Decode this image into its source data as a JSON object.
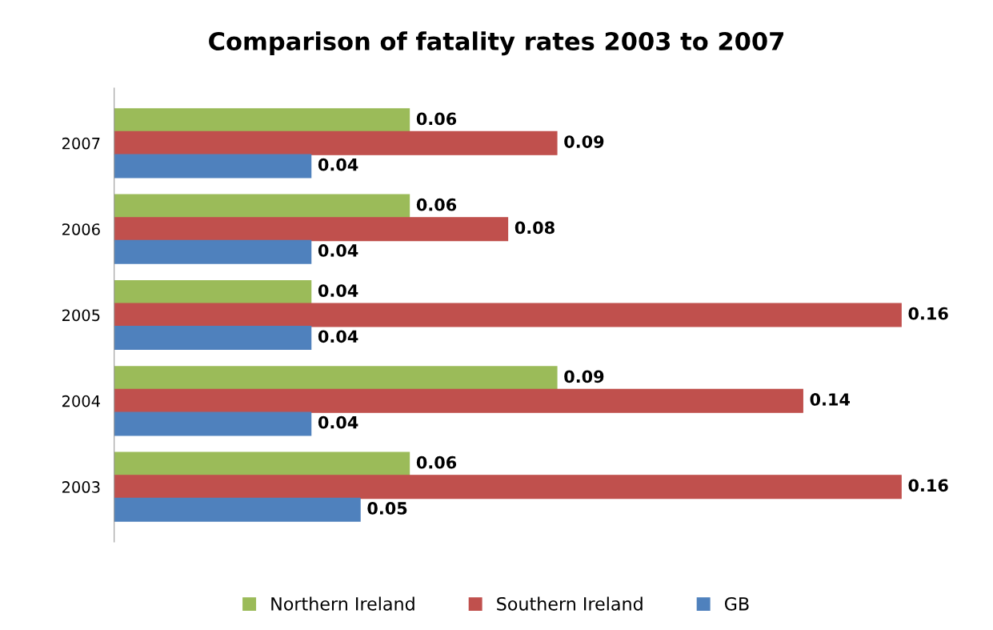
{
  "chart_data": {
    "type": "bar",
    "orientation": "horizontal",
    "title": "Comparison of fatality rates 2003 to 2007",
    "categories": [
      "2007",
      "2006",
      "2005",
      "2004",
      "2003"
    ],
    "series": [
      {
        "name": "Northern Ireland",
        "color": "#9bbb59",
        "values": [
          0.06,
          0.06,
          0.04,
          0.09,
          0.06
        ]
      },
      {
        "name": "Southern Ireland",
        "color": "#c0504d",
        "values": [
          0.09,
          0.08,
          0.16,
          0.14,
          0.16
        ]
      },
      {
        "name": "GB",
        "color": "#4f81bd",
        "values": [
          0.04,
          0.04,
          0.04,
          0.04,
          0.05
        ]
      }
    ],
    "data_labels": true,
    "legend": "bottom",
    "grid": false
  }
}
